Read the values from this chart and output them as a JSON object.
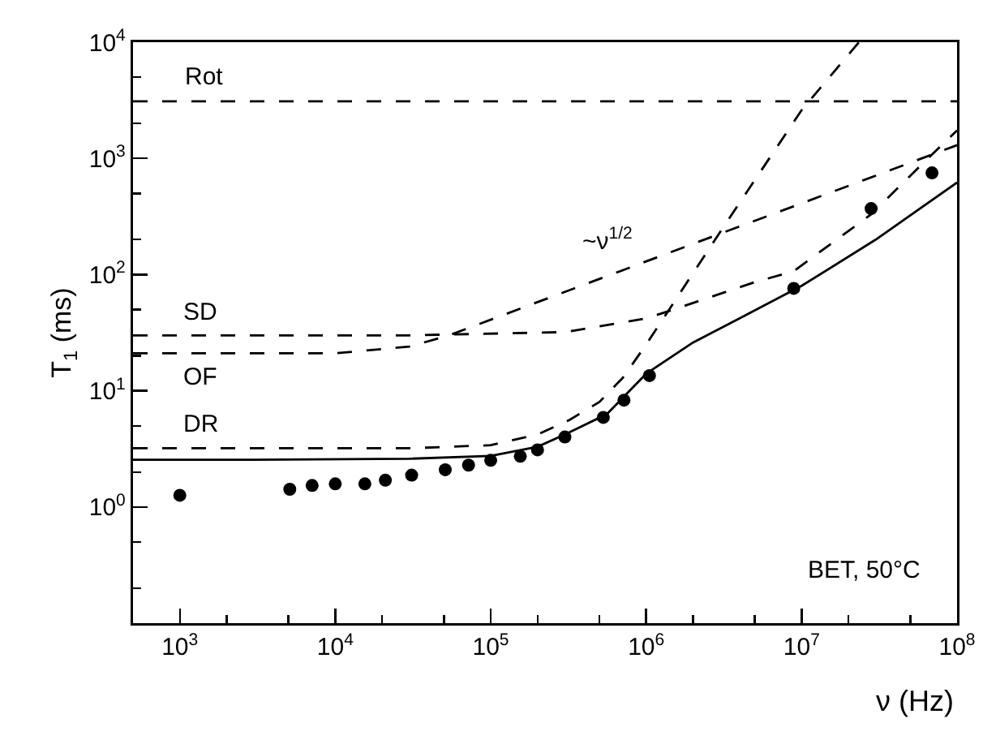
{
  "chart_data": {
    "type": "line",
    "xlabel": "ν (Hz)",
    "ylabel": "T$_{1}$ (ms)",
    "log": "xy",
    "grid": false,
    "legend": false,
    "xlim": [
      500,
      100000000
    ],
    "ylim": [
      0.1,
      10000
    ],
    "xticks": [
      {
        "value": 1000,
        "label": "10$^{3}$"
      },
      {
        "value": 10000,
        "label": "10$^{4}$"
      },
      {
        "value": 100000,
        "label": "10$^{5}$"
      },
      {
        "value": 1000000,
        "label": "10$^{6}$"
      },
      {
        "value": 10000000,
        "label": "10$^{7}$"
      },
      {
        "value": 100000000,
        "label": "10$^{8}$"
      }
    ],
    "yticks": [
      {
        "value": 1,
        "label": "10$^{0}$"
      },
      {
        "value": 10,
        "label": "10$^{1}$"
      },
      {
        "value": 100,
        "label": "10$^{2}$"
      },
      {
        "value": 1000,
        "label": "10$^{3}$"
      },
      {
        "value": 10000,
        "label": "10$^{4}$"
      }
    ],
    "series": [
      {
        "type": "scatter",
        "marker": "circle",
        "color": "#000000",
        "x": [
          1000,
          5100,
          7100,
          10000,
          15500,
          21000,
          31000,
          51000,
          72000,
          100000,
          155000,
          200000,
          300000,
          530000,
          720000,
          1050000,
          8900000,
          28000000,
          69000000
        ],
        "values": [
          1.26,
          1.42,
          1.53,
          1.58,
          1.58,
          1.7,
          1.88,
          2.09,
          2.29,
          2.52,
          2.73,
          3.1,
          4.0,
          5.9,
          8.3,
          13.5,
          76,
          370,
          750
        ]
      },
      {
        "line_style": "solid",
        "color": "#000000",
        "x": [
          500,
          3000,
          30000,
          100000,
          200000,
          300000,
          560000,
          1000000,
          2000000,
          4000000,
          10000000,
          30000000,
          100000000
        ],
        "values": [
          2.55,
          2.55,
          2.6,
          2.75,
          3.3,
          4.2,
          6.3,
          14,
          26,
          42,
          80,
          200,
          620
        ]
      },
      {
        "name": "SD",
        "line_style": "dashed",
        "color": "#000000",
        "x": [
          500,
          30000,
          300000,
          1000000,
          1500000,
          5000000,
          8900000,
          28000000,
          60000000,
          100000000
        ],
        "values": [
          30,
          30,
          32,
          42,
          50,
          86,
          107,
          330,
          900,
          1740
        ]
      },
      {
        "name": "OF",
        "line_style": "dashed",
        "color": "#000000",
        "x": [
          500,
          10000,
          30000,
          54000,
          300000,
          3000000,
          30000000,
          100000000
        ],
        "values": [
          21,
          21,
          24,
          30,
          71,
          225,
          710,
          1300
        ]
      },
      {
        "name": "DR",
        "line_style": "dashed",
        "color": "#000000",
        "x": [
          500,
          30000,
          100000,
          200000,
          320000,
          500000,
          710000,
          1000000,
          3160000,
          10000000,
          23400000
        ],
        "values": [
          3.2,
          3.2,
          3.4,
          4.2,
          5.6,
          8,
          13,
          25,
          260,
          2600,
          10000
        ]
      }
    ],
    "ref_lines": [
      {
        "axis": "y",
        "value": 3100,
        "label": "Rot",
        "color": "#000000",
        "line_style": "dashed"
      }
    ],
    "annotations": [
      "~ν$^{1/2}$",
      "BET, 50°C"
    ]
  }
}
